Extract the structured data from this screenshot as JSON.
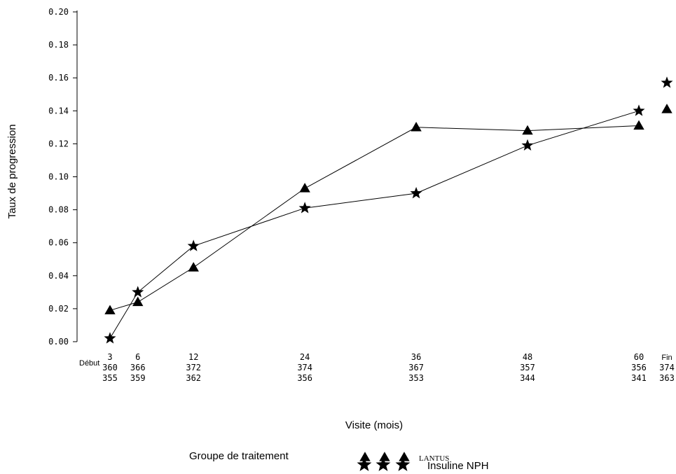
{
  "chart_data": {
    "type": "line",
    "title": "",
    "xlabel": "Visite (mois)",
    "ylabel": "Taux de progression",
    "ylim": [
      0,
      0.2
    ],
    "yticks": [
      "0.00",
      "0.02",
      "0.04",
      "0.06",
      "0.08",
      "0.10",
      "0.12",
      "0.14",
      "0.16",
      "0.18",
      "0.20"
    ],
    "baseline_label": "Début",
    "categories": [
      "3",
      "6",
      "12",
      "24",
      "36",
      "48",
      "60"
    ],
    "end_label": "Fin",
    "n_rows": [
      [
        "360",
        "366",
        "372",
        "374",
        "367",
        "357",
        "356",
        "374"
      ],
      [
        "355",
        "359",
        "362",
        "356",
        "353",
        "344",
        "341",
        "363"
      ]
    ],
    "series": [
      {
        "name": "LANTUS",
        "marker": "triangle",
        "values": [
          0.019,
          0.024,
          0.045,
          0.093,
          0.13,
          0.128,
          0.131
        ],
        "end_value": 0.141
      },
      {
        "name": "Insuline NPH",
        "marker": "star",
        "values": [
          0.002,
          0.03,
          0.058,
          0.081,
          0.09,
          0.119,
          0.14
        ],
        "end_value": 0.157
      }
    ],
    "legend": {
      "title": "Groupe de traitement",
      "position": "bottom"
    },
    "grid": false,
    "color": "#000000"
  }
}
